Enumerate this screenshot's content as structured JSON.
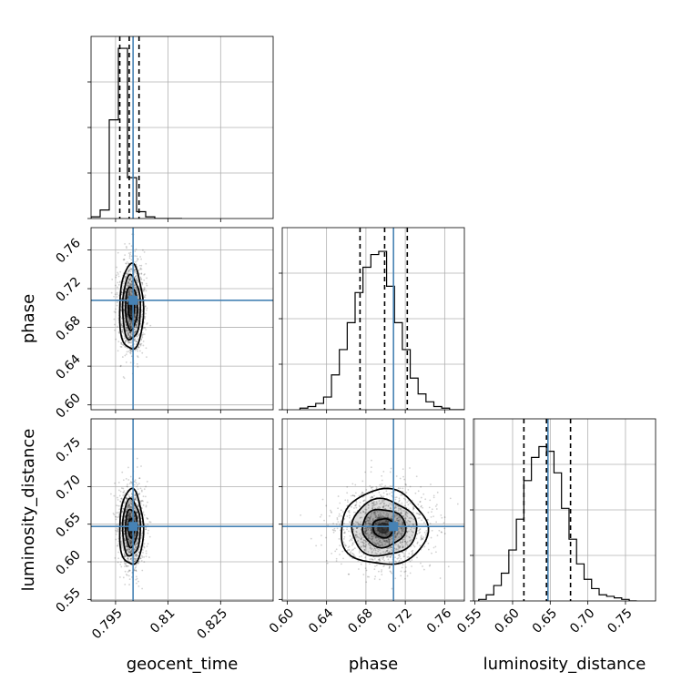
{
  "chart_data": {
    "type": "corner",
    "parameters": [
      "geocent_time",
      "phase",
      "luminosity_distance"
    ],
    "truth": {
      "geocent_time": 0.8,
      "phase": 0.708,
      "luminosity_distance": 0.647
    },
    "colors": {
      "truth": "#4682b4",
      "contour": "#000000",
      "hist": "#000000",
      "grid": "#b0b0b0"
    },
    "grid": true,
    "panels": [
      {
        "id": "hist-geocent_time",
        "kind": "histogram",
        "x_param": "geocent_time",
        "xlim": [
          0.788,
          0.84
        ],
        "xticks": [
          0.795,
          0.81,
          0.825
        ],
        "bin_edges": [
          0.788,
          0.7906,
          0.7932,
          0.7958,
          0.7984,
          0.801,
          0.8036,
          0.8062,
          0.8088,
          0.8114,
          0.814
        ],
        "counts": [
          0.01,
          0.05,
          0.58,
          1.0,
          0.24,
          0.04,
          0.01,
          0,
          0,
          0
        ],
        "quantiles": [
          0.7962,
          0.7989,
          0.8017
        ],
        "ylim": [
          0,
          1.07
        ]
      },
      {
        "id": "scatter-geocent_time-phase",
        "kind": "2d",
        "x_param": "geocent_time",
        "y_param": "phase",
        "xlim": [
          0.788,
          0.84
        ],
        "ylim": [
          0.595,
          0.783
        ],
        "xticks": [
          0.795,
          0.81,
          0.825
        ],
        "yticks": [
          "0.60",
          "0.64",
          "0.68",
          "0.72",
          "0.76"
        ],
        "center": [
          0.7995,
          0.7
        ],
        "sigma": [
          0.0017,
          0.022
        ]
      },
      {
        "id": "hist-phase",
        "kind": "histogram",
        "x_param": "phase",
        "xlim": [
          0.595,
          0.78
        ],
        "xticks": [
          "0.60",
          "0.64",
          "0.68",
          "0.72",
          "0.76"
        ],
        "bin_edges": [
          0.613,
          0.621,
          0.629,
          0.637,
          0.645,
          0.653,
          0.661,
          0.669,
          0.677,
          0.685,
          0.693,
          0.701,
          0.709,
          0.717,
          0.725,
          0.733,
          0.741,
          0.749,
          0.757,
          0.765,
          0.773,
          0.781
        ],
        "counts": [
          0.01,
          0.02,
          0.04,
          0.08,
          0.22,
          0.38,
          0.55,
          0.74,
          0.9,
          0.98,
          1.0,
          0.78,
          0.55,
          0.38,
          0.2,
          0.1,
          0.05,
          0.02,
          0.01,
          0.0,
          0.0
        ],
        "quantiles": [
          0.674,
          0.699,
          0.722
        ],
        "ylim": [
          0,
          1.15
        ]
      },
      {
        "id": "scatter-geocent_time-luminosity_distance",
        "kind": "2d",
        "x_param": "geocent_time",
        "y_param": "luminosity_distance",
        "xlim": [
          0.788,
          0.84
        ],
        "ylim": [
          0.548,
          0.79
        ],
        "xticks": [
          0.795,
          0.81,
          0.825
        ],
        "yticks": [
          "0.55",
          "0.60",
          "0.65",
          "0.70",
          "0.75"
        ],
        "center": [
          0.7995,
          0.645
        ],
        "sigma": [
          0.0017,
          0.025
        ]
      },
      {
        "id": "scatter-phase-luminosity_distance",
        "kind": "2d",
        "x_param": "phase",
        "y_param": "luminosity_distance",
        "xlim": [
          0.595,
          0.78
        ],
        "ylim": [
          0.548,
          0.79
        ],
        "xticks": [
          "0.60",
          "0.64",
          "0.68",
          "0.72",
          "0.76"
        ],
        "yticks": [
          "0.55",
          "0.60",
          "0.65",
          "0.70",
          "0.75"
        ],
        "center": [
          0.698,
          0.645
        ],
        "sigma": [
          0.022,
          0.025
        ]
      },
      {
        "id": "hist-luminosity_distance",
        "kind": "histogram",
        "x_param": "luminosity_distance",
        "xlim": [
          0.548,
          0.79
        ],
        "xticks": [
          "0.55",
          "0.60",
          "0.65",
          "0.70",
          "0.75"
        ],
        "bin_edges": [
          0.555,
          0.565,
          0.575,
          0.585,
          0.595,
          0.605,
          0.615,
          0.625,
          0.635,
          0.645,
          0.655,
          0.665,
          0.675,
          0.685,
          0.695,
          0.705,
          0.715,
          0.725,
          0.735,
          0.745,
          0.755,
          0.765
        ],
        "counts": [
          0.01,
          0.04,
          0.1,
          0.18,
          0.33,
          0.53,
          0.78,
          0.93,
          1.0,
          0.97,
          0.83,
          0.6,
          0.4,
          0.24,
          0.14,
          0.08,
          0.04,
          0.03,
          0.02,
          0.01,
          0.0
        ],
        "quantiles": [
          0.615,
          0.645,
          0.677
        ],
        "ylim": [
          0,
          1.18
        ]
      }
    ]
  }
}
